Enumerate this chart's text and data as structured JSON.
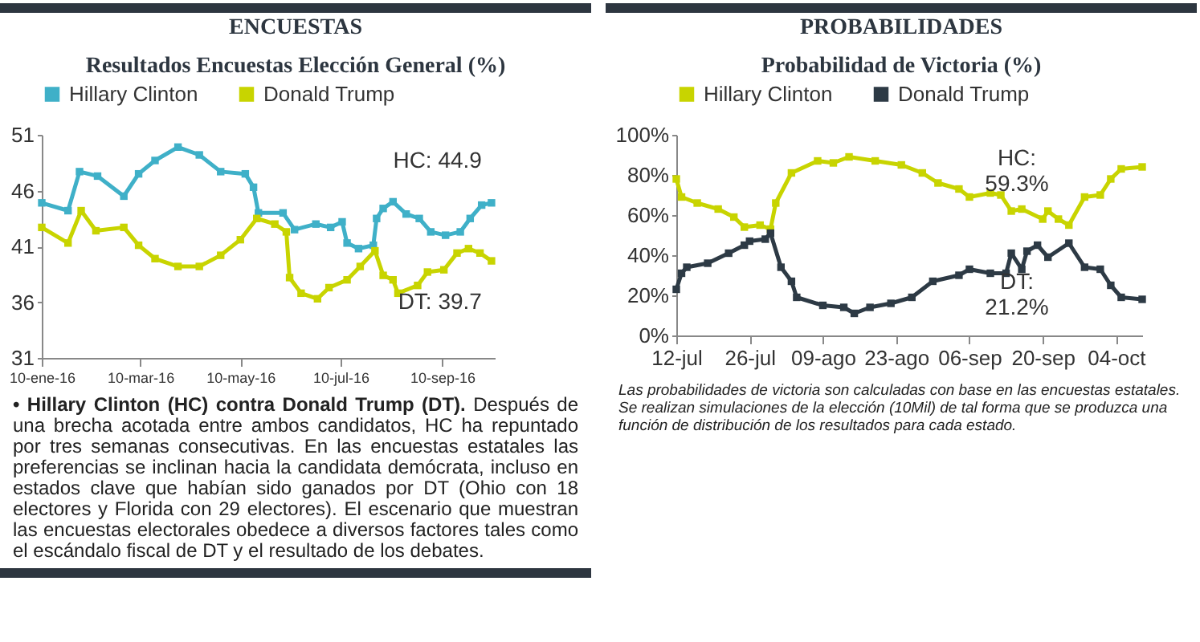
{
  "chart_data": [
    {
      "type": "line",
      "title": "ENCUESTAS",
      "subtitle": "Resultados Encuestas Elección General (%)",
      "xlim": [
        "2016-01-10",
        "2016-10-12"
      ],
      "xticks": [
        {
          "value": "2016-01-10",
          "label": "10-ene-16"
        },
        {
          "value": "2016-03-10",
          "label": "10-mar-16"
        },
        {
          "value": "2016-05-10",
          "label": "10-may-16"
        },
        {
          "value": "2016-07-10",
          "label": "10-jul-16"
        },
        {
          "value": "2016-09-10",
          "label": "10-sep-16"
        }
      ],
      "ylim": [
        31,
        51
      ],
      "yticks": [
        31,
        36,
        41,
        46,
        51
      ],
      "grid": false,
      "legend": "top",
      "marker": "square",
      "line_style": "solid",
      "series": [
        {
          "name": "Hillary Clinton",
          "color": "#3fb0c8",
          "x": [
            "2016-01-10",
            "2016-01-26",
            "2016-02-02",
            "2016-02-13",
            "2016-02-29",
            "2016-03-09",
            "2016-03-19",
            "2016-04-02",
            "2016-04-15",
            "2016-04-28",
            "2016-05-13",
            "2016-05-18",
            "2016-05-21",
            "2016-06-05",
            "2016-06-12",
            "2016-06-25",
            "2016-07-04",
            "2016-07-11",
            "2016-07-14",
            "2016-07-21",
            "2016-07-30",
            "2016-08-01",
            "2016-08-05",
            "2016-08-11",
            "2016-08-19",
            "2016-08-27",
            "2016-09-03",
            "2016-09-12",
            "2016-09-21",
            "2016-09-27",
            "2016-10-04",
            "2016-10-10"
          ],
          "values": [
            44.9,
            44.2,
            47.7,
            47.3,
            45.5,
            47.5,
            48.7,
            49.9,
            49.2,
            47.7,
            47.5,
            46.3,
            44.0,
            44.0,
            42.5,
            43.0,
            42.7,
            43.2,
            41.3,
            40.8,
            41.1,
            43.5,
            44.4,
            45.0,
            43.9,
            43.5,
            42.3,
            42.0,
            42.3,
            43.5,
            44.7,
            44.9
          ]
        },
        {
          "name": "Donald Trump",
          "color": "#c8d400",
          "x": [
            "2016-01-10",
            "2016-01-26",
            "2016-02-03",
            "2016-02-12",
            "2016-02-29",
            "2016-03-09",
            "2016-03-19",
            "2016-04-02",
            "2016-04-15",
            "2016-04-28",
            "2016-05-10",
            "2016-05-20",
            "2016-05-31",
            "2016-06-07",
            "2016-06-09",
            "2016-06-16",
            "2016-06-26",
            "2016-07-03",
            "2016-07-14",
            "2016-07-22",
            "2016-07-31",
            "2016-08-05",
            "2016-08-11",
            "2016-08-14",
            "2016-08-26",
            "2016-09-01",
            "2016-09-11",
            "2016-09-19",
            "2016-09-26",
            "2016-10-03",
            "2016-10-10"
          ],
          "values": [
            42.7,
            41.3,
            44.2,
            42.4,
            42.7,
            41.1,
            39.9,
            39.2,
            39.2,
            40.2,
            41.6,
            43.5,
            43.0,
            42.3,
            38.2,
            36.8,
            36.3,
            37.3,
            38.0,
            39.2,
            40.6,
            38.4,
            38.0,
            36.8,
            37.5,
            38.7,
            38.9,
            40.4,
            40.8,
            40.4,
            39.7
          ]
        }
      ],
      "annotations": [
        {
          "text": "HC: 44.9",
          "x": "2016-10-10",
          "y": 44.9
        },
        {
          "text": "DT: 39.7",
          "x": "2016-10-10",
          "y": 39.7
        },
        "• Hillary Clinton (HC) contra Donald Trump (DT).",
        "Después de una brecha acotada entre ambos candidatos, HC ha repuntado por tres semanas consecutivas. En las encuestas estatales las preferencias se inclinan hacia la candidata demócrata, incluso en estados clave que habían sido ganados por DT (Ohio con 18 electores y Florida con 29 electores). El escenario que muestran las encuestas electorales obedece a diversos factores tales como el escándalo fiscal de DT y el resultado de los debates."
      ]
    },
    {
      "type": "line",
      "title": "PROBABILIDADES",
      "subtitle": "Probabilidad de Victoria (%)",
      "xlim": [
        "--07-12",
        "--10-09"
      ],
      "xticks": [
        {
          "value": "--07-12",
          "label": "12-jul"
        },
        {
          "value": "--07-26",
          "label": "26-jul"
        },
        {
          "value": "--08-09",
          "label": "09-ago"
        },
        {
          "value": "--08-23",
          "label": "23-ago"
        },
        {
          "value": "--09-06",
          "label": "06-sep"
        },
        {
          "value": "--09-20",
          "label": "20-sep"
        },
        {
          "value": "--10-04",
          "label": "04-oct"
        }
      ],
      "ylim": [
        0,
        100
      ],
      "yticks": [
        {
          "value": 0,
          "label": "0%"
        },
        {
          "value": 20,
          "label": "20%"
        },
        {
          "value": 40,
          "label": "40%"
        },
        {
          "value": 60,
          "label": "60%"
        },
        {
          "value": 80,
          "label": "80%"
        },
        {
          "value": 100,
          "label": "100%"
        }
      ],
      "grid": false,
      "legend": "top",
      "marker": "square",
      "line_style": "solid",
      "series": [
        {
          "name": "Hillary Clinton",
          "color": "#c8d400",
          "x": [
            "--07-12",
            "--07-13",
            "--07-16",
            "--07-20",
            "--07-23",
            "--07-25",
            "--07-28",
            "--07-30",
            "--07-31",
            "--08-03",
            "--08-08",
            "--08-11",
            "--08-14",
            "--08-19",
            "--08-24",
            "--08-28",
            "--08-31",
            "--09-04",
            "--09-06",
            "--09-10",
            "--09-12",
            "--09-14",
            "--09-16",
            "--09-20",
            "--09-21",
            "--09-23",
            "--09-25",
            "--09-28",
            "--10-01",
            "--10-03",
            "--10-05",
            "--10-09"
          ],
          "values": [
            78,
            69,
            66,
            63,
            59,
            54,
            55,
            53,
            66,
            81,
            87,
            86,
            89,
            87,
            85,
            81,
            76,
            73,
            69,
            71,
            70,
            62,
            63,
            58,
            62,
            58,
            55,
            69,
            70,
            78,
            83,
            84
          ]
        },
        {
          "name": "Donald Trump",
          "color": "#2d3a45",
          "x": [
            "--07-12",
            "--07-13",
            "--07-14",
            "--07-18",
            "--07-22",
            "--07-25",
            "--07-26",
            "--07-29",
            "--07-30",
            "--08-01",
            "--08-03",
            "--08-04",
            "--08-09",
            "--08-13",
            "--08-15",
            "--08-18",
            "--08-22",
            "--08-26",
            "--08-30",
            "--09-04",
            "--09-06",
            "--09-10",
            "--09-13",
            "--09-14",
            "--09-16",
            "--09-17",
            "--09-19",
            "--09-21",
            "--09-25",
            "--09-28",
            "--10-01",
            "--10-03",
            "--10-05",
            "--10-09"
          ],
          "values": [
            23,
            31,
            34,
            36,
            41,
            45,
            47,
            48,
            51,
            34,
            27,
            19,
            15,
            14,
            11,
            14,
            16,
            19,
            27,
            30,
            33,
            31,
            31,
            41,
            33,
            42,
            45,
            39,
            46,
            34,
            33,
            25,
            19,
            18
          ]
        }
      ],
      "annotations": [
        "HC: 59.3%",
        "DT: 21.2%",
        "Las probabilidades de victoria son calculadas con base en las encuestas estatales. Se realizan simulaciones de la elección (10Mil) de tal forma que se produzca una función de distribución de los resultados para cada estado."
      ]
    }
  ]
}
